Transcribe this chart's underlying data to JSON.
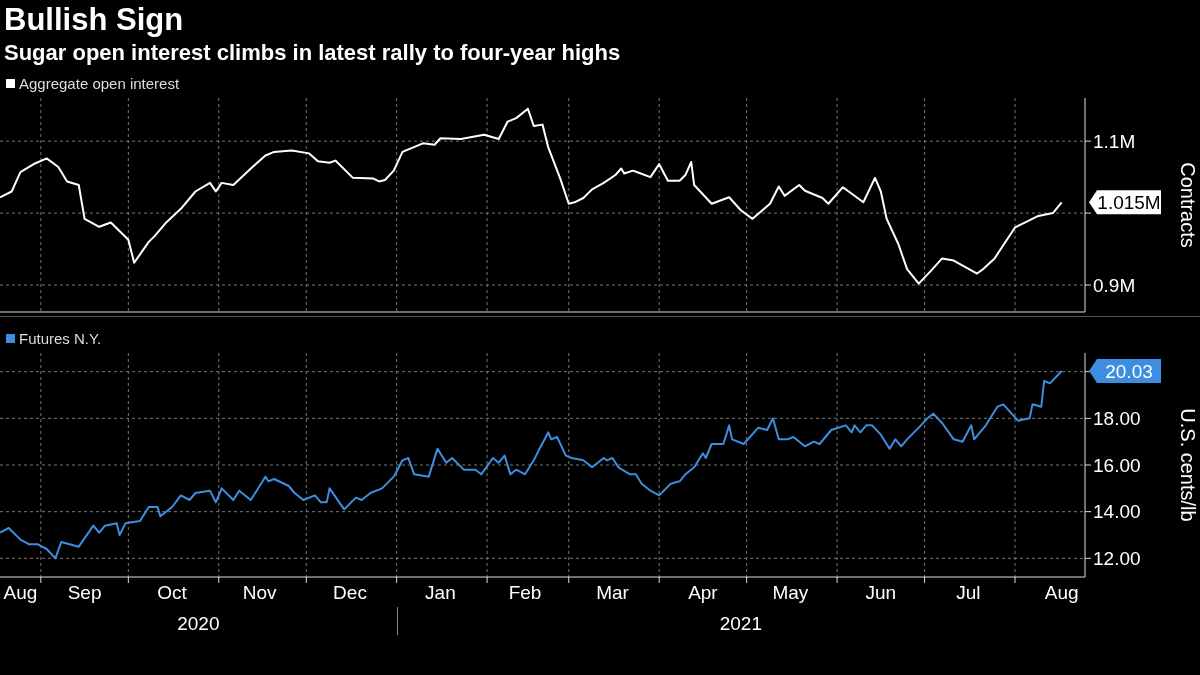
{
  "chart_data": [
    {
      "type": "line",
      "title": "Bullish Sign",
      "subtitle": "Sugar open interest climbs in latest rally to four-year highs",
      "ylabel": "Contracts",
      "legend": "top left",
      "grid": true,
      "tick_labels": "y",
      "xlim": [
        "2020-08-18",
        "2021-08-25"
      ],
      "xticks": [
        {
          "value": "2020-09-01",
          "label": null
        },
        {
          "value": "2020-10-01",
          "label": null
        },
        {
          "value": "2020-11-01",
          "label": null
        },
        {
          "value": "2020-12-01",
          "label": null
        },
        {
          "value": "2021-01-01",
          "label": null
        },
        {
          "value": "2021-02-01",
          "label": null
        },
        {
          "value": "2021-03-01",
          "label": null
        },
        {
          "value": "2021-04-01",
          "label": null
        },
        {
          "value": "2021-05-01",
          "label": null
        },
        {
          "value": "2021-06-01",
          "label": null
        },
        {
          "value": "2021-07-01",
          "label": null
        },
        {
          "value": "2021-08-01",
          "label": null
        }
      ],
      "ylim": [
        862500,
        1160000
      ],
      "yticks": [
        {
          "value": 900000,
          "label": "0.9M"
        },
        {
          "value": 1000000,
          "label": null
        },
        {
          "value": 1100000,
          "label": "1.1M"
        }
      ],
      "annotations": [
        {
          "text": "1.015M",
          "x": "2021-08-17",
          "y": 1015000
        }
      ],
      "x": [
        "2020-08-18",
        "2020-08-22",
        "2020-08-25",
        "2020-08-30",
        "2020-09-03",
        "2020-09-07",
        "2020-09-10",
        "2020-09-14",
        "2020-09-16",
        "2020-09-21",
        "2020-09-25",
        "2020-10-01",
        "2020-10-03",
        "2020-10-08",
        "2020-10-10",
        "2020-10-14",
        "2020-10-19",
        "2020-10-24",
        "2020-10-29",
        "2020-10-31",
        "2020-11-02",
        "2020-11-06",
        "2020-11-12",
        "2020-11-17",
        "2020-11-20",
        "2020-11-26",
        "2020-12-02",
        "2020-12-05",
        "2020-12-09",
        "2020-12-11",
        "2020-12-17",
        "2020-12-24",
        "2020-12-26",
        "2020-12-28",
        "2020-12-31",
        "2021-01-03",
        "2021-01-10",
        "2021-01-14",
        "2021-01-16",
        "2021-01-23",
        "2021-01-31",
        "2021-02-05",
        "2021-02-08",
        "2021-02-11",
        "2021-02-15",
        "2021-02-17",
        "2021-02-20",
        "2021-02-22",
        "2021-02-26",
        "2021-03-01",
        "2021-03-03",
        "2021-03-06",
        "2021-03-09",
        "2021-03-13",
        "2021-03-17",
        "2021-03-19",
        "2021-03-20",
        "2021-03-23",
        "2021-03-25",
        "2021-03-29",
        "2021-04-01",
        "2021-04-04",
        "2021-04-08",
        "2021-04-10",
        "2021-04-12",
        "2021-04-13",
        "2021-04-19",
        "2021-04-25",
        "2021-04-29",
        "2021-05-03",
        "2021-05-09",
        "2021-05-12",
        "2021-05-14",
        "2021-05-19",
        "2021-05-21",
        "2021-05-27",
        "2021-05-29",
        "2021-06-03",
        "2021-06-10",
        "2021-06-14",
        "2021-06-16",
        "2021-06-18",
        "2021-06-22",
        "2021-06-25",
        "2021-06-29",
        "2021-07-03",
        "2021-07-07",
        "2021-07-11",
        "2021-07-15",
        "2021-07-19",
        "2021-07-21",
        "2021-07-25",
        "2021-08-01",
        "2021-08-04",
        "2021-08-09",
        "2021-08-14",
        "2021-08-17"
      ],
      "series": [
        {
          "name": "Aggregate open interest",
          "color": "#ffffff",
          "values": [
            1022000,
            1030000,
            1057000,
            1069000,
            1076000,
            1064000,
            1044000,
            1039000,
            992000,
            981000,
            987000,
            963000,
            931000,
            960000,
            968000,
            987000,
            1006000,
            1030000,
            1042000,
            1030000,
            1042000,
            1039000,
            1062000,
            1080000,
            1085000,
            1087000,
            1083000,
            1072000,
            1070000,
            1073000,
            1049000,
            1048000,
            1044000,
            1046000,
            1059000,
            1085000,
            1097000,
            1095000,
            1104000,
            1103000,
            1109000,
            1103000,
            1127000,
            1132000,
            1145000,
            1121000,
            1123000,
            1091000,
            1049000,
            1013000,
            1015000,
            1021000,
            1033000,
            1042000,
            1053000,
            1062000,
            1055000,
            1059000,
            1056000,
            1050000,
            1068000,
            1045000,
            1045000,
            1053000,
            1071000,
            1039000,
            1013000,
            1022000,
            1004000,
            992000,
            1013000,
            1037000,
            1024000,
            1039000,
            1031000,
            1021000,
            1013000,
            1036000,
            1015000,
            1049000,
            1030000,
            992000,
            957000,
            922000,
            902000,
            919000,
            937000,
            934000,
            925000,
            916000,
            922000,
            937000,
            980000,
            986000,
            996000,
            1000000,
            1015000
          ]
        }
      ]
    },
    {
      "type": "line",
      "ylabel": "U.S. cents/lb",
      "legend": "top left",
      "grid": true,
      "xlim": [
        "2020-08-18",
        "2021-08-25"
      ],
      "xticks": [
        {
          "value": "2020-08-25",
          "label": "Aug"
        },
        {
          "value": "2020-09-01",
          "label": null
        },
        {
          "value": "2020-09-16",
          "label": "Sep"
        },
        {
          "value": "2020-10-01",
          "label": null
        },
        {
          "value": "2020-10-16",
          "label": "Oct"
        },
        {
          "value": "2020-11-01",
          "label": null
        },
        {
          "value": "2020-11-15",
          "label": "Nov"
        },
        {
          "value": "2020-12-01",
          "label": null
        },
        {
          "value": "2020-12-16",
          "label": "Dec"
        },
        {
          "value": "2021-01-01",
          "label": null
        },
        {
          "value": "2021-01-16",
          "label": "Jan"
        },
        {
          "value": "2021-02-01",
          "label": null
        },
        {
          "value": "2021-02-14",
          "label": "Feb"
        },
        {
          "value": "2021-03-01",
          "label": null
        },
        {
          "value": "2021-03-16",
          "label": "Mar"
        },
        {
          "value": "2021-04-01",
          "label": null
        },
        {
          "value": "2021-04-16",
          "label": "Apr"
        },
        {
          "value": "2021-05-01",
          "label": null
        },
        {
          "value": "2021-05-16",
          "label": "May"
        },
        {
          "value": "2021-06-01",
          "label": null
        },
        {
          "value": "2021-06-16",
          "label": "Jun"
        },
        {
          "value": "2021-07-01",
          "label": null
        },
        {
          "value": "2021-07-16",
          "label": "Jul"
        },
        {
          "value": "2021-08-01",
          "label": null
        },
        {
          "value": "2021-08-17",
          "label": "Aug"
        }
      ],
      "ylim": [
        11.2,
        20.8
      ],
      "yticks": [
        {
          "value": 12,
          "label": "12.00"
        },
        {
          "value": 14,
          "label": "14.00"
        },
        {
          "value": 16,
          "label": "16.00"
        },
        {
          "value": 18,
          "label": "18.00"
        },
        {
          "value": 20,
          "label": null
        }
      ],
      "annotations": [
        {
          "text": "20.03",
          "x": "2021-08-17",
          "y": 20.03
        },
        "2020",
        "2021"
      ],
      "x": [
        "2020-08-18",
        "2020-08-21",
        "2020-08-25",
        "2020-08-28",
        "2020-08-31",
        "2020-09-03",
        "2020-09-06",
        "2020-09-08",
        "2020-09-14",
        "2020-09-19",
        "2020-09-21",
        "2020-09-23",
        "2020-09-27",
        "2020-09-28",
        "2020-09-30",
        "2020-10-05",
        "2020-10-08",
        "2020-10-11",
        "2020-10-12",
        "2020-10-16",
        "2020-10-19",
        "2020-10-22",
        "2020-10-24",
        "2020-10-29",
        "2020-10-31",
        "2020-11-02",
        "2020-11-06",
        "2020-11-08",
        "2020-11-12",
        "2020-11-14",
        "2020-11-17",
        "2020-11-18",
        "2020-11-20",
        "2020-11-25",
        "2020-11-27",
        "2020-11-30",
        "2020-12-04",
        "2020-12-06",
        "2020-12-08",
        "2020-12-09",
        "2020-12-14",
        "2020-12-18",
        "2020-12-20",
        "2020-12-23",
        "2020-12-27",
        "2020-12-31",
        "2021-01-03",
        "2021-01-05",
        "2021-01-07",
        "2021-01-12",
        "2021-01-15",
        "2021-01-18",
        "2021-01-20",
        "2021-01-24",
        "2021-01-28",
        "2021-01-30",
        "2021-02-03",
        "2021-02-05",
        "2021-02-07",
        "2021-02-09",
        "2021-02-11",
        "2021-02-14",
        "2021-02-17",
        "2021-02-19",
        "2021-02-22",
        "2021-02-23",
        "2021-02-25",
        "2021-02-28",
        "2021-03-02",
        "2021-03-06",
        "2021-03-09",
        "2021-03-13",
        "2021-03-14",
        "2021-03-16",
        "2021-03-18",
        "2021-03-22",
        "2021-03-24",
        "2021-03-26",
        "2021-03-29",
        "2021-04-01",
        "2021-04-05",
        "2021-04-08",
        "2021-04-10",
        "2021-04-13",
        "2021-04-16",
        "2021-04-17",
        "2021-04-19",
        "2021-04-23",
        "2021-04-25",
        "2021-04-26",
        "2021-04-30",
        "2021-05-05",
        "2021-05-08",
        "2021-05-10",
        "2021-05-12",
        "2021-05-15",
        "2021-05-17",
        "2021-05-21",
        "2021-05-24",
        "2021-05-26",
        "2021-05-30",
        "2021-06-04",
        "2021-06-06",
        "2021-06-07",
        "2021-06-09",
        "2021-06-11",
        "2021-06-13",
        "2021-06-16",
        "2021-06-19",
        "2021-06-21",
        "2021-06-23",
        "2021-06-25",
        "2021-06-29",
        "2021-07-02",
        "2021-07-04",
        "2021-07-07",
        "2021-07-11",
        "2021-07-14",
        "2021-07-17",
        "2021-07-18",
        "2021-07-22",
        "2021-07-25",
        "2021-07-26",
        "2021-07-28",
        "2021-08-02",
        "2021-08-06",
        "2021-08-07",
        "2021-08-10",
        "2021-08-11",
        "2021-08-13",
        "2021-08-17"
      ],
      "series": [
        {
          "name": "Futures N.Y.",
          "color": "#3d8ee0",
          "values": [
            13.1,
            13.3,
            12.8,
            12.6,
            12.6,
            12.4,
            12.0,
            12.7,
            12.5,
            13.4,
            13.1,
            13.4,
            13.5,
            13.0,
            13.5,
            13.6,
            14.2,
            14.2,
            13.8,
            14.2,
            14.7,
            14.5,
            14.8,
            14.9,
            14.4,
            15.0,
            14.5,
            14.9,
            14.5,
            14.9,
            15.5,
            15.3,
            15.4,
            15.1,
            14.8,
            14.5,
            14.7,
            14.4,
            14.4,
            15.0,
            14.1,
            14.6,
            14.5,
            14.8,
            15.0,
            15.5,
            16.2,
            16.3,
            15.6,
            15.5,
            16.7,
            16.1,
            16.3,
            15.8,
            15.8,
            15.6,
            16.3,
            16.1,
            16.4,
            15.6,
            15.8,
            15.6,
            16.2,
            16.7,
            17.4,
            17.1,
            17.2,
            16.4,
            16.3,
            16.2,
            15.9,
            16.3,
            16.2,
            16.3,
            15.9,
            15.6,
            15.6,
            15.2,
            14.9,
            14.7,
            15.2,
            15.3,
            15.6,
            15.9,
            16.5,
            16.3,
            16.9,
            16.9,
            17.7,
            17.1,
            16.9,
            17.6,
            17.5,
            18.0,
            17.1,
            17.1,
            17.2,
            16.8,
            17.0,
            16.9,
            17.5,
            17.7,
            17.4,
            17.7,
            17.4,
            17.7,
            17.7,
            17.3,
            16.7,
            17.1,
            16.8,
            17.1,
            17.6,
            18.0,
            18.2,
            17.8,
            17.1,
            17.0,
            17.7,
            17.1,
            17.7,
            18.3,
            18.5,
            18.6,
            17.9,
            18.0,
            18.6,
            18.5,
            19.6,
            19.5,
            20.03
          ]
        }
      ]
    }
  ]
}
